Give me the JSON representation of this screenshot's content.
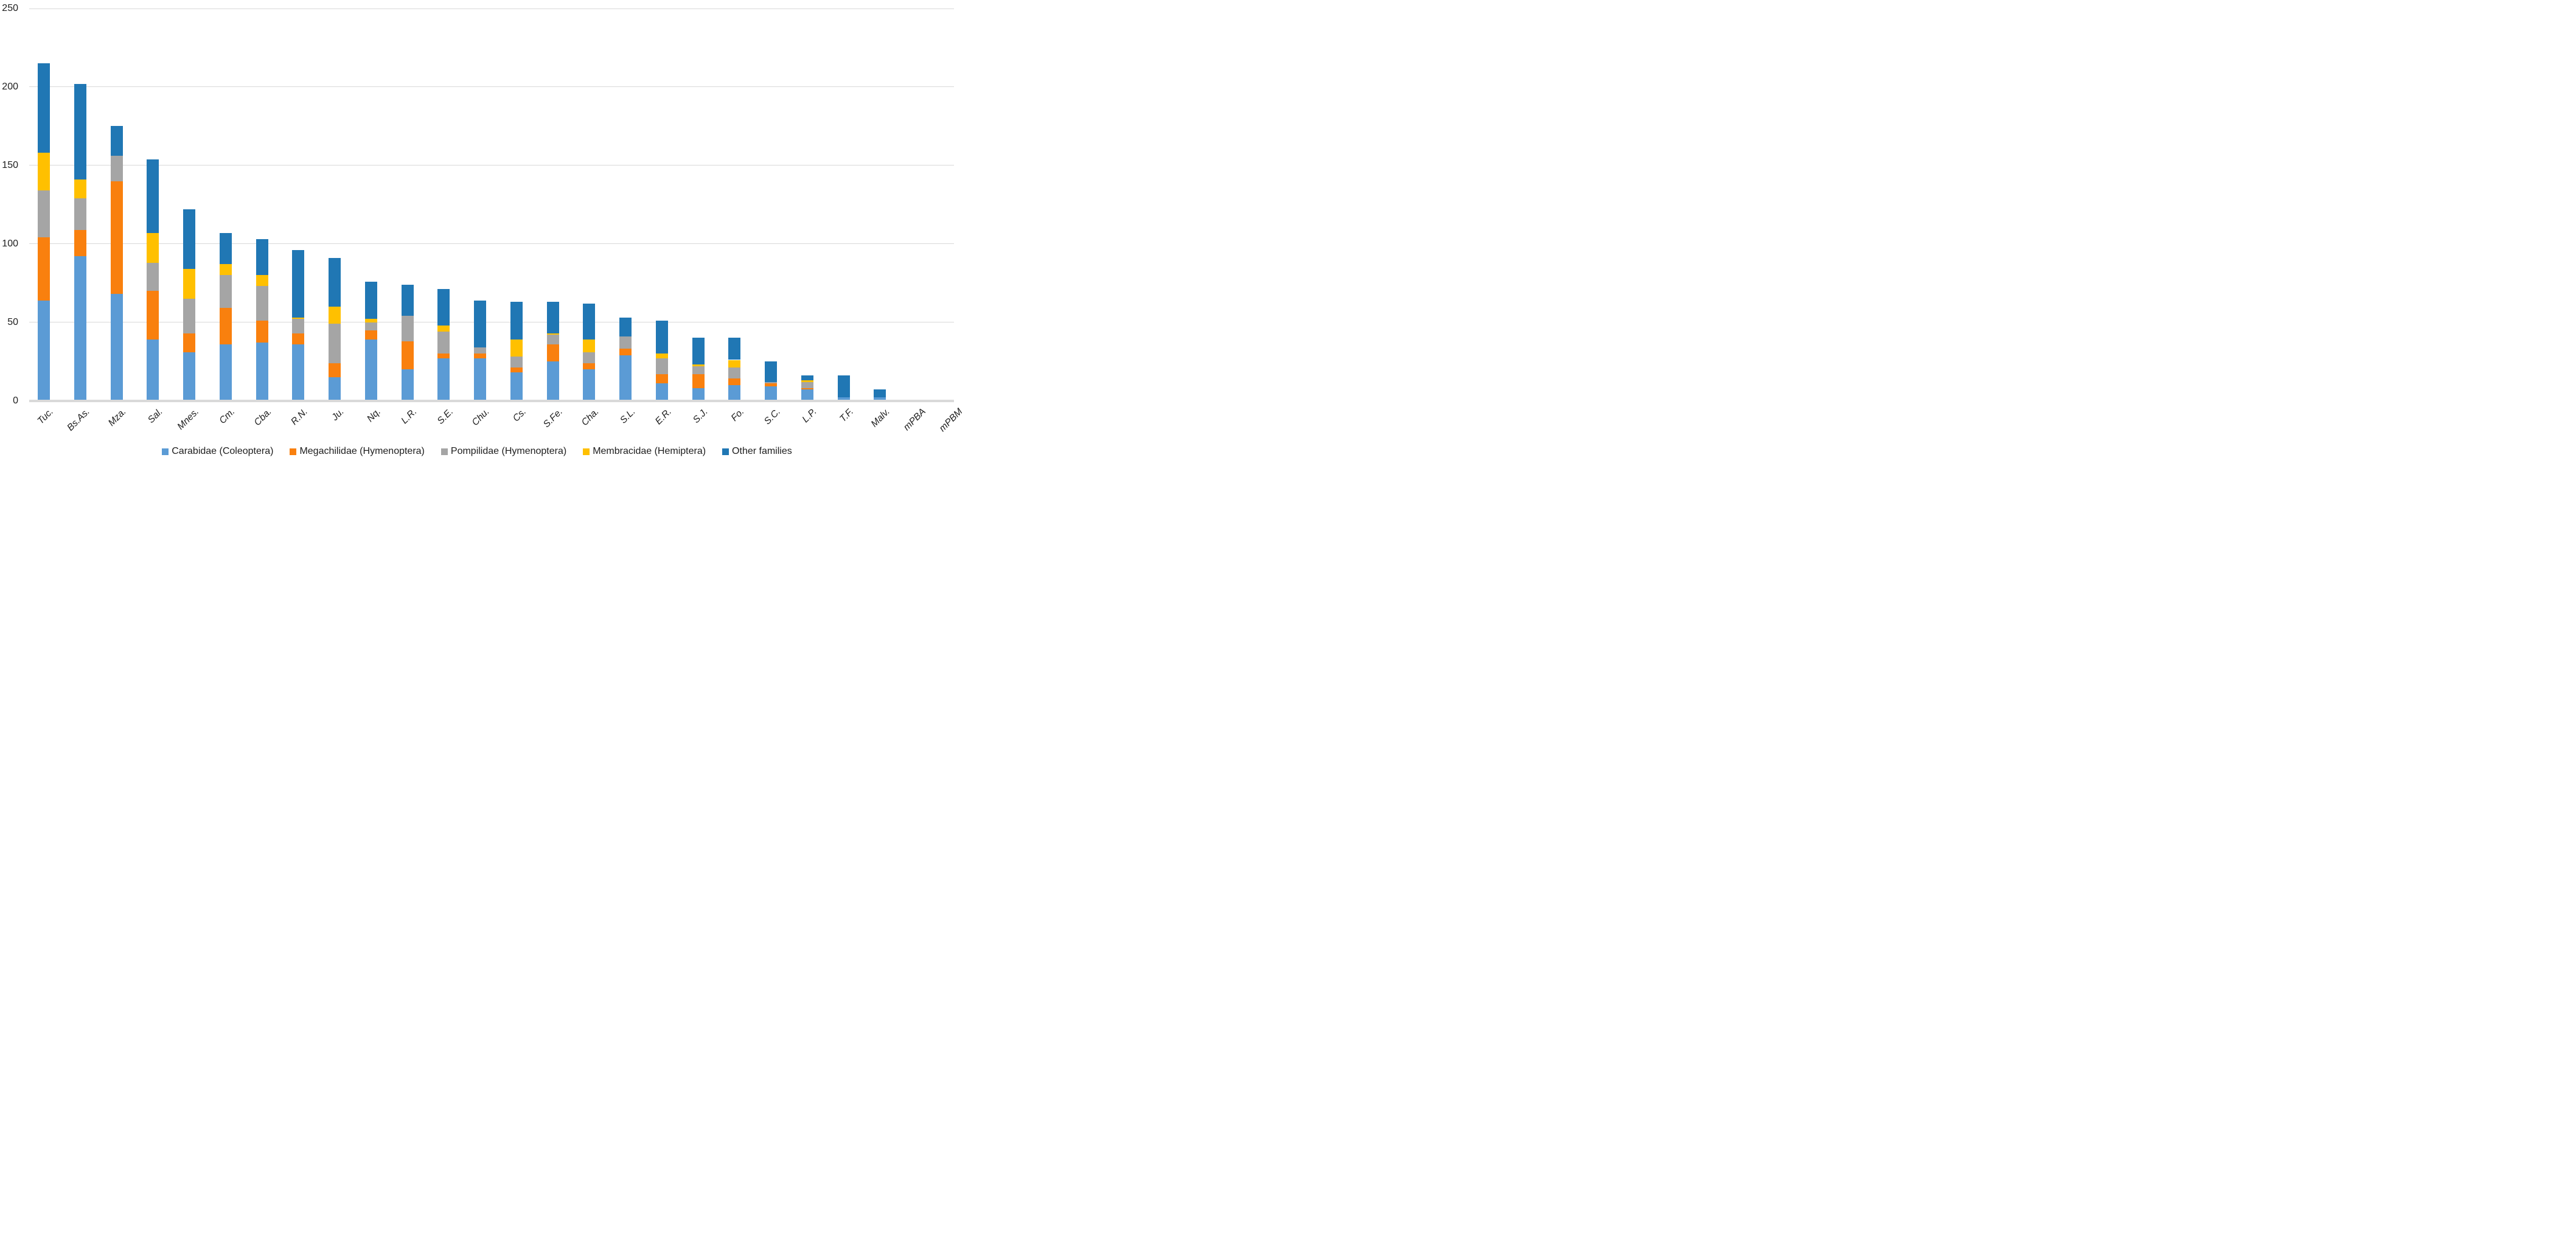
{
  "chart_data": {
    "type": "bar",
    "stacked": true,
    "title": "",
    "xlabel": "",
    "ylabel": "",
    "grid": true,
    "legend_position": "bottom",
    "y_axis": {
      "min": 0,
      "max": 250,
      "step": 50,
      "ticks": [
        0,
        50,
        100,
        150,
        200,
        250
      ]
    },
    "categories": [
      "Tuc.",
      "Bs.As.",
      "Mza.",
      "Sal.",
      "Mnes.",
      "Cm.",
      "Cba.",
      "R.N.",
      "Ju.",
      "Nq.",
      "L.R.",
      "S.E.",
      "Chu.",
      "Cs.",
      "S.Fe.",
      "Cha.",
      "S.L.",
      "E.R.",
      "S.J.",
      "Fo.",
      "S.C.",
      "L.P.",
      "T.F.",
      "Malv.",
      "mPBA",
      "mPBM"
    ],
    "series": [
      {
        "name": "Carabidae (Coleoptera)",
        "color": "#5B9BD5",
        "values": [
          64,
          92,
          68,
          39,
          31,
          36,
          37,
          36,
          15,
          39,
          20,
          27,
          27,
          18,
          25,
          20,
          29,
          11,
          8,
          10,
          9,
          7,
          2,
          2,
          0,
          0
        ]
      },
      {
        "name": "Megachilidae (Hymenoptera)",
        "color": "#F9800E",
        "values": [
          40,
          17,
          72,
          31,
          12,
          23,
          14,
          7,
          9,
          6,
          18,
          3,
          3,
          3,
          11,
          4,
          4,
          6,
          9,
          4,
          2,
          1,
          0,
          0,
          0,
          0
        ]
      },
      {
        "name": "Pompilidae (Hymenoptera)",
        "color": "#A5A5A5",
        "values": [
          30,
          20,
          16,
          18,
          22,
          21,
          22,
          9,
          25,
          5,
          16,
          14,
          4,
          7,
          6,
          7,
          8,
          10,
          5,
          7,
          1,
          4,
          0,
          0,
          0,
          0
        ]
      },
      {
        "name": "Membracidae (Hemiptera)",
        "color": "#FFC000",
        "values": [
          24,
          12,
          0,
          19,
          19,
          7,
          7,
          1,
          11,
          2,
          0,
          4,
          0,
          11,
          1,
          8,
          0,
          3,
          1,
          5,
          0,
          1,
          0,
          0,
          0,
          0
        ]
      },
      {
        "name": "Other families",
        "color": "#2077B4",
        "values": [
          57,
          61,
          19,
          47,
          38,
          20,
          23,
          43,
          31,
          24,
          20,
          23,
          30,
          24,
          20,
          23,
          12,
          21,
          17,
          14,
          13,
          3,
          14,
          5,
          0,
          0
        ]
      }
    ],
    "totals": [
      215,
      202,
      175,
      154,
      122,
      107,
      103,
      96,
      91,
      76,
      74,
      71,
      64,
      63,
      63,
      62,
      53,
      51,
      40,
      40,
      25,
      16,
      16,
      7,
      0,
      0
    ]
  },
  "colors": {
    "grid": "#D9D9D9",
    "axis_line": "#D9D9D9",
    "text": "#1d1d1d",
    "background": "#ffffff"
  }
}
